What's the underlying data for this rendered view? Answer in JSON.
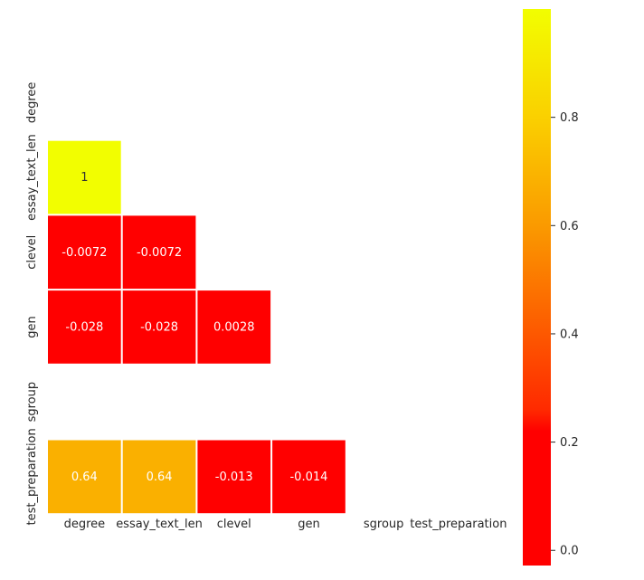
{
  "chart_data": {
    "type": "heatmap",
    "title": "",
    "xlabel": "",
    "ylabel": "",
    "x_labels": [
      "degree",
      "essay_text_len",
      "clevel",
      "gen",
      "sgroup",
      "test_preparation"
    ],
    "y_labels": [
      "degree",
      "essay_text_len",
      "clevel",
      "gen",
      "sgroup",
      "test_preparation"
    ],
    "mask": "upper-triangle (diagonal and above hidden); sgroup row empty",
    "cells": [
      {
        "row": 1,
        "col": 0,
        "value": 1,
        "label": "1",
        "color": "#F2FE00"
      },
      {
        "row": 2,
        "col": 0,
        "value": -0.0072,
        "label": "-0.0072",
        "color": "#FF0000"
      },
      {
        "row": 2,
        "col": 1,
        "value": -0.0072,
        "label": "-0.0072",
        "color": "#FF0000"
      },
      {
        "row": 3,
        "col": 0,
        "value": -0.028,
        "label": "-0.028",
        "color": "#FF0000"
      },
      {
        "row": 3,
        "col": 1,
        "value": -0.028,
        "label": "-0.028",
        "color": "#FF0000"
      },
      {
        "row": 3,
        "col": 2,
        "value": 0.0028,
        "label": "0.0028",
        "color": "#FF0000"
      },
      {
        "row": 5,
        "col": 0,
        "value": 0.64,
        "label": "0.64",
        "color": "#FAB000"
      },
      {
        "row": 5,
        "col": 1,
        "value": 0.64,
        "label": "0.64",
        "color": "#FAB000"
      },
      {
        "row": 5,
        "col": 2,
        "value": -0.013,
        "label": "-0.013",
        "color": "#FF0000"
      },
      {
        "row": 5,
        "col": 3,
        "value": -0.014,
        "label": "-0.014",
        "color": "#FF0000"
      }
    ],
    "colorbar": {
      "vmin": -0.028,
      "vmax": 1,
      "ticks": [
        0.0,
        0.2,
        0.4,
        0.6,
        0.8
      ],
      "tick_labels": [
        "0.0",
        "0.2",
        "0.4",
        "0.6",
        "0.8"
      ],
      "colormap": "autumn (red to yellow)",
      "stops": [
        {
          "v": -0.028,
          "color": "#FF0000"
        },
        {
          "v": 0.22,
          "color": "#FF0000"
        },
        {
          "v": 0.26,
          "color": "#FF2A00"
        },
        {
          "v": 0.6,
          "color": "#FA9A00"
        },
        {
          "v": 0.8,
          "color": "#FAD000"
        },
        {
          "v": 1,
          "color": "#F2FE00"
        }
      ]
    },
    "text_color": "#ffffff",
    "cell_text_color_on_bright": "#333333",
    "grid_line_color": "#ffffff"
  }
}
